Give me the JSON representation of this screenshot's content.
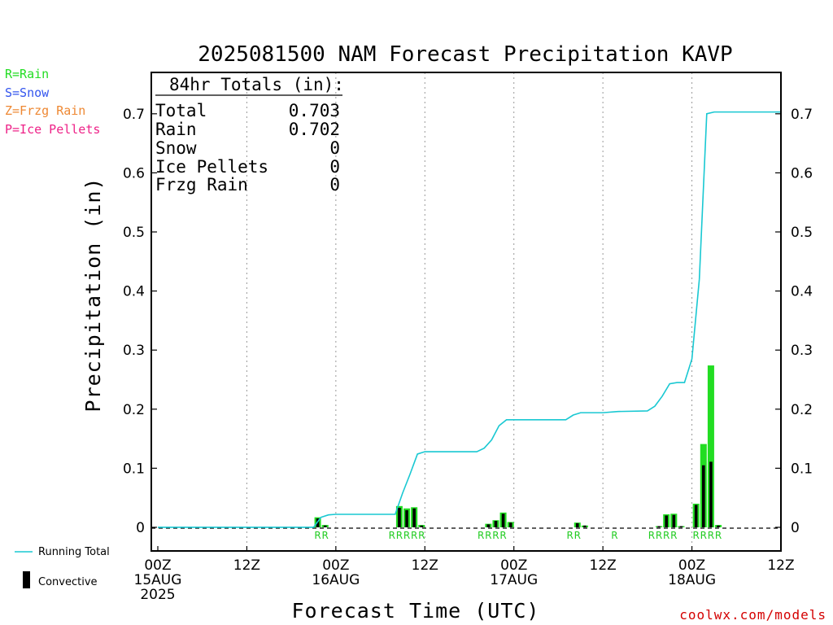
{
  "colors": {
    "rain": "#22dd22",
    "snow": "#3355ee",
    "frzg_rain": "#ee8833",
    "ice_pellets": "#ee2288",
    "running_total": "#19c8d2",
    "convective": "#000000",
    "credit": "#d40000"
  },
  "key": {
    "rain": "R=Rain",
    "snow": "S=Snow",
    "frzg_rain": "Z=Frzg Rain",
    "ice_pellets": "P=Ice Pellets"
  },
  "totals": {
    "header": "84hr Totals (in):",
    "rows": [
      {
        "label": "Total",
        "value": "0.703"
      },
      {
        "label": "Rain",
        "value": "0.702"
      },
      {
        "label": "Snow",
        "value": "0"
      },
      {
        "label": "Ice Pellets",
        "value": "0"
      },
      {
        "label": "Frzg Rain",
        "value": "0"
      }
    ]
  },
  "legend": {
    "running_total": "Running Total",
    "convective": "Convective"
  },
  "credit": "coolwx.com/models",
  "chart_data": {
    "type": "bar",
    "title": "2025081500 NAM Forecast Precipitation KAVP",
    "xlabel": "Forecast Time (UTC)",
    "ylabel": "Precipitation (in)",
    "xlim_hours": [
      0,
      84
    ],
    "ylim": [
      -0.04,
      0.77
    ],
    "y_ticks": [
      0,
      0.1,
      0.2,
      0.3,
      0.4,
      0.5,
      0.6,
      0.7
    ],
    "grid": "vertical dotted at 12-hour ticks",
    "x_ticks": [
      {
        "hour": 0,
        "lines": [
          "00Z",
          "15AUG",
          "2025"
        ]
      },
      {
        "hour": 12,
        "lines": [
          "12Z"
        ]
      },
      {
        "hour": 24,
        "lines": [
          "00Z",
          "16AUG"
        ]
      },
      {
        "hour": 36,
        "lines": [
          "12Z"
        ]
      },
      {
        "hour": 48,
        "lines": [
          "00Z",
          "17AUG"
        ]
      },
      {
        "hour": 60,
        "lines": [
          "12Z"
        ]
      },
      {
        "hour": 72,
        "lines": [
          "00Z",
          "18AUG"
        ]
      },
      {
        "hour": 84,
        "lines": [
          "12Z"
        ]
      }
    ],
    "bars": [
      {
        "hour": 22,
        "total": 0.017,
        "convective": 0.015
      },
      {
        "hour": 23,
        "total": 0.004,
        "convective": 0.003
      },
      {
        "hour": 33,
        "total": 0.036,
        "convective": 0.033
      },
      {
        "hour": 34,
        "total": 0.032,
        "convective": 0.029
      },
      {
        "hour": 35,
        "total": 0.034,
        "convective": 0.032
      },
      {
        "hour": 36,
        "total": 0.004,
        "convective": 0.003
      },
      {
        "hour": 45,
        "total": 0.006,
        "convective": 0.005
      },
      {
        "hour": 46,
        "total": 0.012,
        "convective": 0.011
      },
      {
        "hour": 47,
        "total": 0.025,
        "convective": 0.023
      },
      {
        "hour": 48,
        "total": 0.009,
        "convective": 0.008
      },
      {
        "hour": 57,
        "total": 0.008,
        "convective": 0.007
      },
      {
        "hour": 58,
        "total": 0.003,
        "convective": 0.003
      },
      {
        "hour": 68,
        "total": 0.002,
        "convective": 0.002
      },
      {
        "hour": 69,
        "total": 0.022,
        "convective": 0.02
      },
      {
        "hour": 70,
        "total": 0.023,
        "convective": 0.021
      },
      {
        "hour": 71,
        "total": 0.002,
        "convective": 0.002
      },
      {
        "hour": 73,
        "total": 0.04,
        "convective": 0.038
      },
      {
        "hour": 74,
        "total": 0.141,
        "convective": 0.105
      },
      {
        "hour": 75,
        "total": 0.274,
        "convective": 0.111
      },
      {
        "hour": 76,
        "total": 0.004,
        "convective": 0.003
      }
    ],
    "running_total": {
      "name": "Running Total",
      "points": [
        [
          0,
          0
        ],
        [
          21,
          0
        ],
        [
          22,
          0.017
        ],
        [
          23,
          0.021
        ],
        [
          24,
          0.022
        ],
        [
          32,
          0.022
        ],
        [
          33,
          0.058
        ],
        [
          34,
          0.09
        ],
        [
          35,
          0.124
        ],
        [
          36,
          0.128
        ],
        [
          43,
          0.128
        ],
        [
          44,
          0.134
        ],
        [
          45,
          0.148
        ],
        [
          46,
          0.172
        ],
        [
          47,
          0.182
        ],
        [
          48,
          0.182
        ],
        [
          55,
          0.182
        ],
        [
          56,
          0.19
        ],
        [
          57,
          0.194
        ],
        [
          60,
          0.194
        ],
        [
          62,
          0.196
        ],
        [
          66,
          0.197
        ],
        [
          67,
          0.205
        ],
        [
          68,
          0.222
        ],
        [
          69,
          0.243
        ],
        [
          70,
          0.245
        ],
        [
          71,
          0.245
        ],
        [
          72,
          0.285
        ],
        [
          73,
          0.42
        ],
        [
          74,
          0.7
        ],
        [
          75,
          0.703
        ],
        [
          84,
          0.703
        ]
      ]
    },
    "ptype_labels": [
      {
        "hour": 22,
        "text": "R"
      },
      {
        "hour": 23,
        "text": "R"
      },
      {
        "hour": 32,
        "text": "R"
      },
      {
        "hour": 33,
        "text": "R"
      },
      {
        "hour": 34,
        "text": "R"
      },
      {
        "hour": 35,
        "text": "R"
      },
      {
        "hour": 36,
        "text": "R"
      },
      {
        "hour": 44,
        "text": "R"
      },
      {
        "hour": 45,
        "text": "R"
      },
      {
        "hour": 46,
        "text": "R"
      },
      {
        "hour": 47,
        "text": "R"
      },
      {
        "hour": 56,
        "text": "R"
      },
      {
        "hour": 57,
        "text": "R"
      },
      {
        "hour": 62,
        "text": "R"
      },
      {
        "hour": 67,
        "text": "R"
      },
      {
        "hour": 68,
        "text": "R"
      },
      {
        "hour": 69,
        "text": "R"
      },
      {
        "hour": 70,
        "text": "R"
      },
      {
        "hour": 73,
        "text": "R"
      },
      {
        "hour": 74,
        "text": "R"
      },
      {
        "hour": 75,
        "text": "R"
      },
      {
        "hour": 76,
        "text": "R"
      }
    ]
  }
}
